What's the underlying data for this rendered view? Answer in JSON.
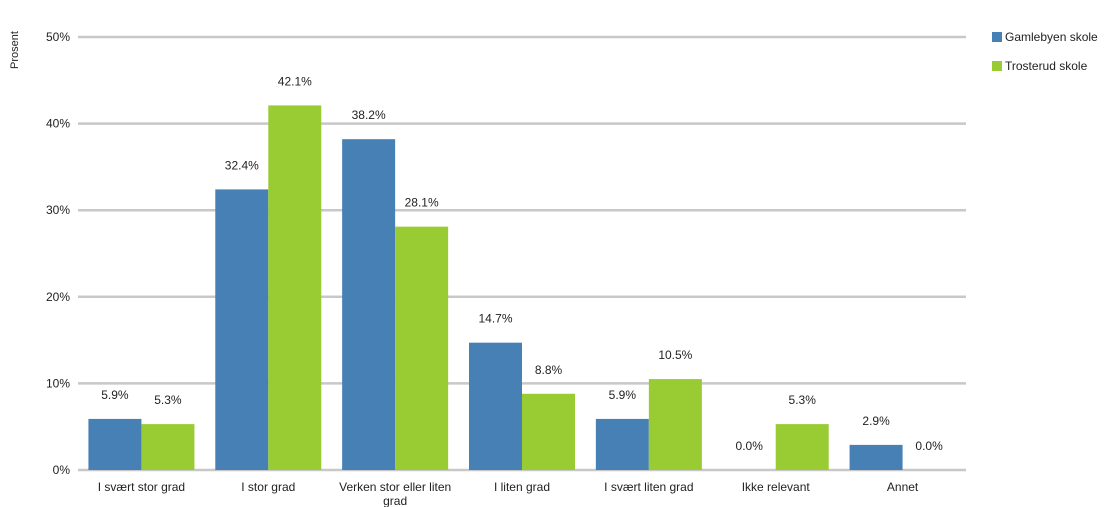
{
  "chart_data": {
    "type": "bar",
    "ylabel": "Prosent",
    "xlabel": "",
    "title": "",
    "ylim": [
      0,
      50
    ],
    "yticks": [
      "0%",
      "10%",
      "20%",
      "30%",
      "40%",
      "50%"
    ],
    "grid": true,
    "legend_position": "right",
    "categories": [
      [
        "I svært stor grad"
      ],
      [
        "I stor grad"
      ],
      [
        "Verken stor eller liten",
        "grad"
      ],
      [
        "I liten grad"
      ],
      [
        "I svært liten grad"
      ],
      [
        "Ikke relevant"
      ],
      [
        "Annet"
      ]
    ],
    "series": [
      {
        "name": "Gamlebyen skole",
        "color": "#4680B5",
        "values": [
          5.9,
          32.4,
          38.2,
          14.7,
          5.9,
          0.0,
          2.9
        ],
        "labels": [
          "5.9%",
          "32.4%",
          "38.2%",
          "14.7%",
          "5.9%",
          "0.0%",
          "2.9%"
        ]
      },
      {
        "name": "Trosterud skole",
        "color": "#99CC33",
        "values": [
          5.3,
          42.1,
          28.1,
          8.8,
          10.5,
          5.3,
          0.0
        ],
        "labels": [
          "5.3%",
          "42.1%",
          "28.1%",
          "8.8%",
          "10.5%",
          "5.3%",
          "0.0%"
        ]
      }
    ]
  }
}
